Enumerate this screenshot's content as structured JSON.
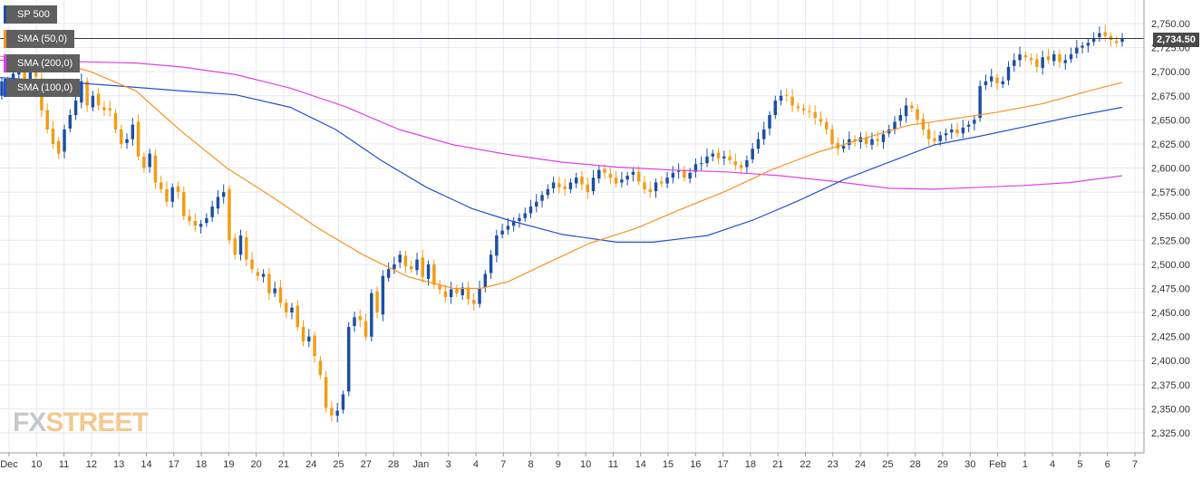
{
  "chart_data": {
    "type": "candlestick",
    "symbol": "SP 500",
    "last_price_label": "2,734.50",
    "last_price": 2734.5,
    "y_ticks": [
      2325,
      2350,
      2375,
      2400,
      2425,
      2450,
      2475,
      2500,
      2525,
      2550,
      2575,
      2600,
      2625,
      2650,
      2675,
      2700,
      2725,
      2750
    ],
    "y_tick_labels": [
      "2,325.00",
      "2,350.00",
      "2,375.00",
      "2,400.00",
      "2,425.00",
      "2,450.00",
      "2,475.00",
      "2,500.00",
      "2,525.00",
      "2,550.00",
      "2,575.00",
      "2,600.00",
      "2,625.00",
      "2,650.00",
      "2,675.00",
      "2,700.00",
      "2,725.00",
      "2,750.00"
    ],
    "x_labels": [
      "Dec",
      "10",
      "11",
      "12",
      "13",
      "14",
      "17",
      "18",
      "19",
      "20",
      "21",
      "24",
      "25",
      "27",
      "28",
      "Jan",
      "3",
      "4",
      "7",
      "8",
      "9",
      "10",
      "11",
      "14",
      "15",
      "16",
      "17",
      "18",
      "21",
      "22",
      "23",
      "24",
      "25",
      "28",
      "29",
      "30",
      "Feb",
      "1",
      "4",
      "5",
      "6",
      "7"
    ],
    "indicators": [
      {
        "name": "SMA (50,0)",
        "color": "#f7931e",
        "key": "sma50"
      },
      {
        "name": "SMA (200,0)",
        "color": "#e040e8",
        "key": "sma200"
      },
      {
        "name": "SMA (100,0)",
        "color": "#2450d0",
        "key": "sma100"
      }
    ],
    "colors": {
      "up": "#1a4fa3",
      "down": "#f39c12",
      "grid": "#e9e9ee",
      "price_line": "#2b3a4a"
    },
    "candle_close": [
      2690,
      2680,
      2698,
      2700,
      2688,
      2705,
      2695,
      2660,
      2640,
      2625,
      2615,
      2640,
      2655,
      2670,
      2690,
      2665,
      2675,
      2665,
      2660,
      2660,
      2640,
      2625,
      2630,
      2645,
      2612,
      2600,
      2615,
      2585,
      2578,
      2565,
      2580,
      2575,
      2550,
      2545,
      2540,
      2542,
      2548,
      2560,
      2570,
      2575,
      2525,
      2510,
      2530,
      2505,
      2495,
      2488,
      2490,
      2470,
      2475,
      2460,
      2450,
      2455,
      2435,
      2420,
      2425,
      2405,
      2385,
      2351,
      2343,
      2348,
      2365,
      2435,
      2445,
      2442,
      2425,
      2470,
      2450,
      2488,
      2495,
      2500,
      2510,
      2498,
      2495,
      2505,
      2487,
      2500,
      2479,
      2474,
      2466,
      2474,
      2470,
      2476,
      2464,
      2459,
      2475,
      2490,
      2510,
      2530,
      2535,
      2540,
      2545,
      2548,
      2553,
      2560,
      2565,
      2572,
      2578,
      2585,
      2580,
      2578,
      2585,
      2590,
      2583,
      2575,
      2590,
      2598,
      2595,
      2590,
      2584,
      2588,
      2592,
      2596,
      2586,
      2578,
      2575,
      2585,
      2584,
      2590,
      2595,
      2597,
      2590,
      2595,
      2604,
      2605,
      2612,
      2615,
      2610,
      2612,
      2608,
      2603,
      2600,
      2608,
      2620,
      2630,
      2640,
      2655,
      2670,
      2675,
      2675,
      2665,
      2662,
      2660,
      2658,
      2652,
      2648,
      2640,
      2625,
      2620,
      2623,
      2630,
      2628,
      2632,
      2625,
      2630,
      2628,
      2635,
      2640,
      2648,
      2655,
      2665,
      2662,
      2650,
      2640,
      2630,
      2628,
      2634,
      2636,
      2640,
      2636,
      2642,
      2645,
      2650,
      2685,
      2690,
      2695,
      2688,
      2690,
      2705,
      2712,
      2718,
      2715,
      2712,
      2705,
      2715,
      2712,
      2718,
      2710,
      2712,
      2718,
      2725,
      2727,
      2730,
      2735,
      2740,
      2737,
      2733,
      2730,
      2734
    ],
    "candle_open": [
      2675,
      2690,
      2682,
      2697,
      2700,
      2690,
      2706,
      2693,
      2660,
      2641,
      2628,
      2617,
      2641,
      2655,
      2668,
      2690,
      2663,
      2677,
      2663,
      2662,
      2657,
      2640,
      2626,
      2630,
      2648,
      2612,
      2601,
      2613,
      2585,
      2578,
      2565,
      2581,
      2575,
      2550,
      2545,
      2539,
      2543,
      2549,
      2558,
      2570,
      2578,
      2527,
      2510,
      2528,
      2505,
      2492,
      2487,
      2490,
      2470,
      2476,
      2460,
      2450,
      2457,
      2435,
      2420,
      2426,
      2400,
      2383,
      2351,
      2343,
      2349,
      2368,
      2436,
      2446,
      2441,
      2425,
      2472,
      2448,
      2486,
      2495,
      2502,
      2509,
      2498,
      2494,
      2507,
      2485,
      2500,
      2478,
      2472,
      2466,
      2475,
      2468,
      2476,
      2463,
      2459,
      2476,
      2491,
      2509,
      2531,
      2536,
      2540,
      2545,
      2548,
      2553,
      2560,
      2566,
      2572,
      2579,
      2584,
      2581,
      2578,
      2584,
      2591,
      2583,
      2576,
      2589,
      2599,
      2594,
      2590,
      2585,
      2588,
      2593,
      2596,
      2585,
      2578,
      2576,
      2586,
      2584,
      2590,
      2596,
      2598,
      2589,
      2596,
      2604,
      2605,
      2612,
      2616,
      2610,
      2612,
      2607,
      2603,
      2601,
      2609,
      2620,
      2630,
      2641,
      2655,
      2670,
      2676,
      2674,
      2664,
      2662,
      2659,
      2658,
      2651,
      2648,
      2640,
      2626,
      2620,
      2624,
      2630,
      2627,
      2632,
      2624,
      2630,
      2627,
      2636,
      2640,
      2649,
      2654,
      2665,
      2661,
      2651,
      2640,
      2631,
      2628,
      2634,
      2637,
      2640,
      2636,
      2643,
      2646,
      2652,
      2686,
      2690,
      2694,
      2687,
      2691,
      2706,
      2712,
      2717,
      2714,
      2713,
      2704,
      2716,
      2711,
      2718,
      2709,
      2713,
      2719,
      2725,
      2727,
      2731,
      2736,
      2741,
      2737,
      2732,
      2731
    ],
    "sma50": [
      [
        0,
        2716
      ],
      [
        60,
        2711
      ],
      [
        100,
        2700
      ],
      [
        150,
        2680
      ],
      [
        200,
        2638
      ],
      [
        250,
        2600
      ],
      [
        300,
        2570
      ],
      [
        350,
        2538
      ],
      [
        400,
        2510
      ],
      [
        450,
        2487
      ],
      [
        500,
        2475
      ],
      [
        530,
        2475
      ],
      [
        560,
        2482
      ],
      [
        600,
        2500
      ],
      [
        650,
        2522
      ],
      [
        700,
        2537
      ],
      [
        750,
        2557
      ],
      [
        800,
        2576
      ],
      [
        850,
        2598
      ],
      [
        900,
        2616
      ],
      [
        950,
        2630
      ],
      [
        1000,
        2644
      ],
      [
        1050,
        2651
      ],
      [
        1100,
        2658
      ],
      [
        1150,
        2667
      ],
      [
        1200,
        2680
      ],
      [
        1237,
        2689
      ]
    ],
    "sma100": [
      [
        0,
        2694
      ],
      [
        60,
        2690
      ],
      [
        120,
        2686
      ],
      [
        200,
        2680
      ],
      [
        260,
        2676
      ],
      [
        320,
        2663
      ],
      [
        370,
        2640
      ],
      [
        420,
        2608
      ],
      [
        470,
        2580
      ],
      [
        520,
        2558
      ],
      [
        560,
        2546
      ],
      [
        620,
        2531
      ],
      [
        680,
        2523
      ],
      [
        720,
        2523
      ],
      [
        780,
        2530
      ],
      [
        830,
        2546
      ],
      [
        880,
        2566
      ],
      [
        930,
        2588
      ],
      [
        980,
        2606
      ],
      [
        1030,
        2624
      ],
      [
        1080,
        2633
      ],
      [
        1130,
        2643
      ],
      [
        1180,
        2653
      ],
      [
        1237,
        2663
      ]
    ],
    "sma200": [
      [
        0,
        2712
      ],
      [
        60,
        2711
      ],
      [
        150,
        2709
      ],
      [
        200,
        2705
      ],
      [
        260,
        2697
      ],
      [
        320,
        2683
      ],
      [
        380,
        2664
      ],
      [
        440,
        2640
      ],
      [
        500,
        2624
      ],
      [
        560,
        2614
      ],
      [
        620,
        2606
      ],
      [
        680,
        2601
      ],
      [
        740,
        2598
      ],
      [
        800,
        2596
      ],
      [
        860,
        2592
      ],
      [
        920,
        2586
      ],
      [
        980,
        2579
      ],
      [
        1030,
        2578
      ],
      [
        1080,
        2580
      ],
      [
        1130,
        2582
      ],
      [
        1180,
        2585
      ],
      [
        1237,
        2592
      ]
    ]
  },
  "watermark": {
    "part1": "FX",
    "part2": "STREET"
  }
}
